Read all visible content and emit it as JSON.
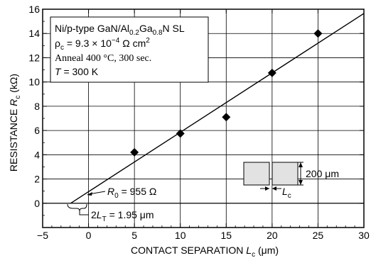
{
  "chart_data": {
    "type": "scatter",
    "xlabel": "CONTACT  SEPARATION",
    "xlabel_var": "L",
    "xlabel_sub": "c",
    "xlabel_unit": "(μm)",
    "ylabel": "RESISTANCE",
    "ylabel_var": "R",
    "ylabel_sub": "c",
    "ylabel_unit": "(kΩ)",
    "xlim": [
      -5,
      30
    ],
    "ylim": [
      -2,
      16
    ],
    "xticks": [
      -5,
      0,
      5,
      10,
      15,
      20,
      25,
      30
    ],
    "yticks": [
      0,
      2,
      4,
      6,
      8,
      10,
      12,
      14,
      16
    ],
    "grid": true,
    "points": [
      {
        "x": 5,
        "y": 4.2
      },
      {
        "x": 10,
        "y": 5.75
      },
      {
        "x": 15,
        "y": 7.1
      },
      {
        "x": 20,
        "y": 10.75
      },
      {
        "x": 25,
        "y": 14.0
      }
    ],
    "fit_line": {
      "x": [
        -1.95,
        30
      ],
      "y": [
        0,
        15.65
      ]
    },
    "legend_box": {
      "line1": "Ni/p-type GaN/Al",
      "line1_sub1": "0.2",
      "line1_mid": "Ga",
      "line1_sub2": "0.8",
      "line1_end": "N SL",
      "line2_sym": "ρ",
      "line2_sub": "c",
      "line2_text": " = 9.3 × 10",
      "line2_exp": "−4",
      "line2_unit": " Ω cm",
      "line2_exp2": "2",
      "line3": "Anneal  400 °C, 300 sec.",
      "line4_var": "T",
      "line4_text": " = 300 K"
    },
    "annotations": {
      "r0_var": "R",
      "r0_sub": "0",
      "r0_text": " = 955 Ω",
      "lt_pre": "2",
      "lt_var": "L",
      "lt_sub": "T",
      "lt_text": " = 1.95 μm",
      "inset_dim": "200 μm",
      "inset_var": "L",
      "inset_sub": "c"
    }
  }
}
